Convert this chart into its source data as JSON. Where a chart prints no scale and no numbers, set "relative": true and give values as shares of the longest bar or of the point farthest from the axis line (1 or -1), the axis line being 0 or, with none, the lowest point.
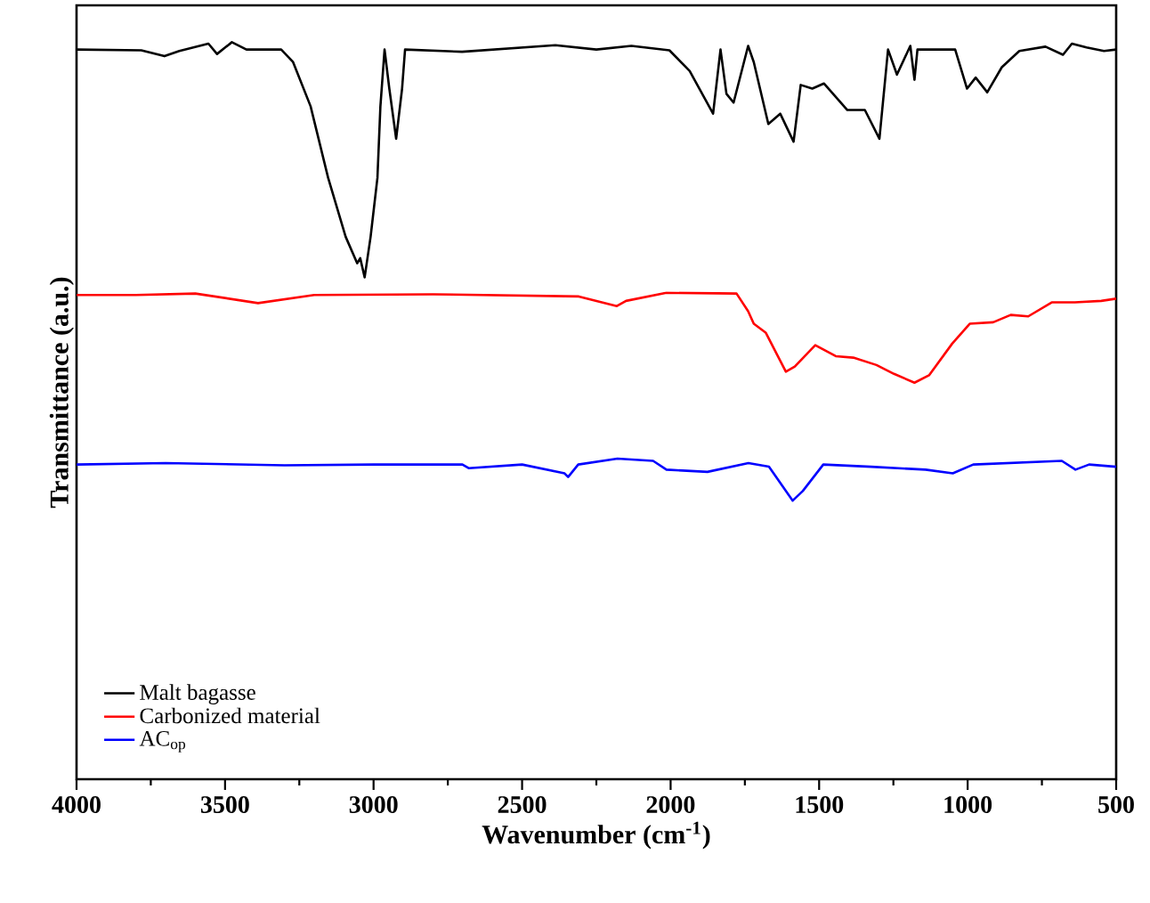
{
  "chart_data": {
    "type": "line",
    "relative": true,
    "xlabel": "Wavenumber (cm$^{-1}$)",
    "ylabel": "Transmittance (a.u.)",
    "xlim": [
      4000,
      500
    ],
    "xticks": [
      4000,
      3500,
      3000,
      2500,
      2000,
      1500,
      1000,
      500
    ],
    "legend": "bottom left",
    "line_style": "solid",
    "series": [
      {
        "name": "Malt bagasse",
        "color": "#000000",
        "x": [
          4000,
          3782,
          3704,
          3654,
          3556,
          3527,
          3477,
          3428,
          3311,
          3271,
          3212,
          3153,
          3094,
          3055,
          3045,
          3030,
          3010,
          2987,
          2977,
          2963,
          2947,
          2924,
          2904,
          2894,
          2702,
          2388,
          2250,
          2132,
          2004,
          1936,
          1857,
          1832,
          1812,
          1788,
          1739,
          1720,
          1671,
          1631,
          1586,
          1562,
          1523,
          1484,
          1405,
          1346,
          1297,
          1268,
          1238,
          1193,
          1179,
          1169,
          1042,
          1002,
          973,
          934,
          885,
          826,
          738,
          679,
          649,
          600,
          541,
          500
        ],
        "values": [
          0.99,
          0.989,
          0.981,
          0.988,
          0.998,
          0.984,
          1.0,
          0.99,
          0.99,
          0.973,
          0.913,
          0.816,
          0.736,
          0.7,
          0.707,
          0.681,
          0.736,
          0.816,
          0.913,
          0.99,
          0.937,
          0.869,
          0.937,
          0.99,
          0.987,
          0.996,
          0.99,
          0.995,
          0.989,
          0.961,
          0.903,
          0.99,
          0.93,
          0.918,
          0.995,
          0.973,
          0.889,
          0.903,
          0.865,
          0.942,
          0.937,
          0.944,
          0.908,
          0.908,
          0.869,
          0.99,
          0.956,
          0.995,
          0.949,
          0.99,
          0.99,
          0.937,
          0.952,
          0.932,
          0.966,
          0.988,
          0.994,
          0.983,
          0.998,
          0.993,
          0.988,
          0.99
        ]
      },
      {
        "name": "Carbonized material",
        "color": "#ff0000",
        "x": [
          4000,
          3800,
          3600,
          3389,
          3200,
          2800,
          2309,
          2181,
          2150,
          2014,
          1778,
          1739,
          1720,
          1680,
          1612,
          1582,
          1513,
          1444,
          1385,
          1307,
          1248,
          1179,
          1130,
          1052,
          993,
          914,
          855,
          796,
          717,
          639,
          550,
          500
        ],
        "values": [
          0.657,
          0.657,
          0.659,
          0.646,
          0.657,
          0.658,
          0.655,
          0.642,
          0.649,
          0.66,
          0.659,
          0.635,
          0.618,
          0.606,
          0.553,
          0.56,
          0.589,
          0.574,
          0.572,
          0.562,
          0.55,
          0.538,
          0.548,
          0.591,
          0.618,
          0.62,
          0.63,
          0.628,
          0.647,
          0.647,
          0.649,
          0.652
        ]
      },
      {
        "name": "AC$_{op}$",
        "color": "#0000ff",
        "x": [
          4000,
          3700,
          3300,
          3000,
          2701,
          2680,
          2500,
          2357,
          2345,
          2311,
          2179,
          2059,
          2014,
          1876,
          1738,
          1669,
          1589,
          1555,
          1486,
          1325,
          1142,
          1050,
          981,
          683,
          637,
          591,
          500
        ],
        "values": [
          0.427,
          0.429,
          0.426,
          0.427,
          0.427,
          0.422,
          0.427,
          0.415,
          0.41,
          0.427,
          0.435,
          0.432,
          0.42,
          0.417,
          0.429,
          0.424,
          0.378,
          0.391,
          0.427,
          0.424,
          0.42,
          0.415,
          0.427,
          0.432,
          0.42,
          0.427,
          0.424
        ]
      }
    ]
  }
}
